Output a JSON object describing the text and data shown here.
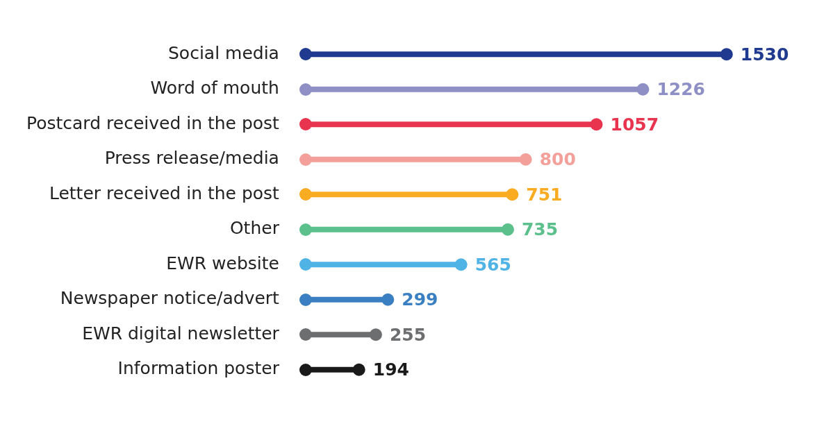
{
  "chart_data": {
    "type": "lollipop",
    "orientation": "horizontal",
    "data_labels": true,
    "categories": [
      "Social media",
      "Word of mouth",
      "Postcard received in the post",
      "Press release/media",
      "Letter received in the post",
      "Other",
      "EWR website",
      "Newspaper notice/advert",
      "EWR digital newsletter",
      "Information poster"
    ],
    "values": [
      1530,
      1226,
      1057,
      800,
      751,
      735,
      565,
      299,
      255,
      194
    ],
    "colors": [
      "#1f3a8f",
      "#8e8fc4",
      "#e8344e",
      "#f4a09a",
      "#f9ab22",
      "#5cc08c",
      "#4fb3e6",
      "#3a7fc1",
      "#6d6e70",
      "#1a1a1a"
    ],
    "marker": "circle"
  }
}
